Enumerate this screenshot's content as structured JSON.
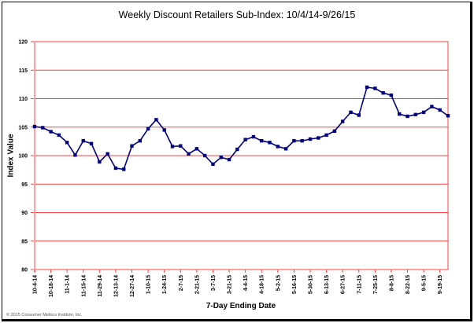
{
  "chart_data": {
    "type": "line",
    "title": "Weekly Discount Retailers Sub-Index: 10/4/14-9/26/15",
    "xlabel": "7-Day Ending Date",
    "ylabel": "Index Value",
    "ylim": [
      80,
      120
    ],
    "yticks": [
      80,
      85,
      90,
      95,
      100,
      105,
      110,
      115,
      120
    ],
    "grid": true,
    "legend": null,
    "x_tick_labels": [
      "10-4-14",
      "10-18-14",
      "11-1-14",
      "11-15-14",
      "11-29-14",
      "12-13-14",
      "12-27-14",
      "1-10-15",
      "1-24-15",
      "2-7-15",
      "2-21-15",
      "3-7-15",
      "3-21-15",
      "4-4-15",
      "4-18-15",
      "5-2-15",
      "5-16-15",
      "5-30-15",
      "6-13-15",
      "6-27-15",
      "7-11-15",
      "7-25-15",
      "8-8-15",
      "8-22-15",
      "9-5-15",
      "9-19-15"
    ],
    "categories": [
      "10-4-14",
      "10-11-14",
      "10-18-14",
      "10-25-14",
      "11-1-14",
      "11-8-14",
      "11-15-14",
      "11-22-14",
      "11-29-14",
      "12-6-14",
      "12-13-14",
      "12-20-14",
      "12-27-14",
      "1-3-15",
      "1-10-15",
      "1-17-15",
      "1-24-15",
      "1-31-15",
      "2-7-15",
      "2-14-15",
      "2-21-15",
      "2-28-15",
      "3-7-15",
      "3-14-15",
      "3-21-15",
      "3-28-15",
      "4-4-15",
      "4-11-15",
      "4-18-15",
      "4-25-15",
      "5-2-15",
      "5-9-15",
      "5-16-15",
      "5-23-15",
      "5-30-15",
      "6-6-15",
      "6-13-15",
      "6-20-15",
      "6-27-15",
      "7-4-15",
      "7-11-15",
      "7-18-15",
      "7-25-15",
      "8-1-15",
      "8-8-15",
      "8-15-15",
      "8-22-15",
      "8-29-15",
      "9-5-15",
      "9-12-15",
      "9-19-15",
      "9-26-15"
    ],
    "series": [
      {
        "name": "Discount Retailers Sub-Index",
        "color": "#000080",
        "values": [
          105.1,
          104.9,
          104.2,
          103.6,
          102.3,
          100.1,
          102.6,
          102.1,
          98.9,
          100.3,
          97.8,
          97.6,
          101.7,
          102.6,
          104.7,
          106.3,
          104.5,
          101.6,
          101.7,
          100.3,
          101.2,
          100.0,
          98.5,
          99.7,
          99.3,
          101.1,
          102.8,
          103.3,
          102.6,
          102.3,
          101.6,
          101.2,
          102.6,
          102.6,
          102.9,
          103.1,
          103.6,
          104.3,
          106.0,
          107.6,
          107.1,
          112.0,
          111.8,
          111.0,
          110.6,
          107.3,
          106.9,
          107.2,
          107.6,
          108.6,
          108.0,
          107.0
        ]
      }
    ]
  },
  "colors": {
    "gridline": "#ff4040",
    "axis": "#ffa0a0",
    "series": "#000080"
  },
  "footer": "© 2015 Consumer Metrics Institute, Inc."
}
